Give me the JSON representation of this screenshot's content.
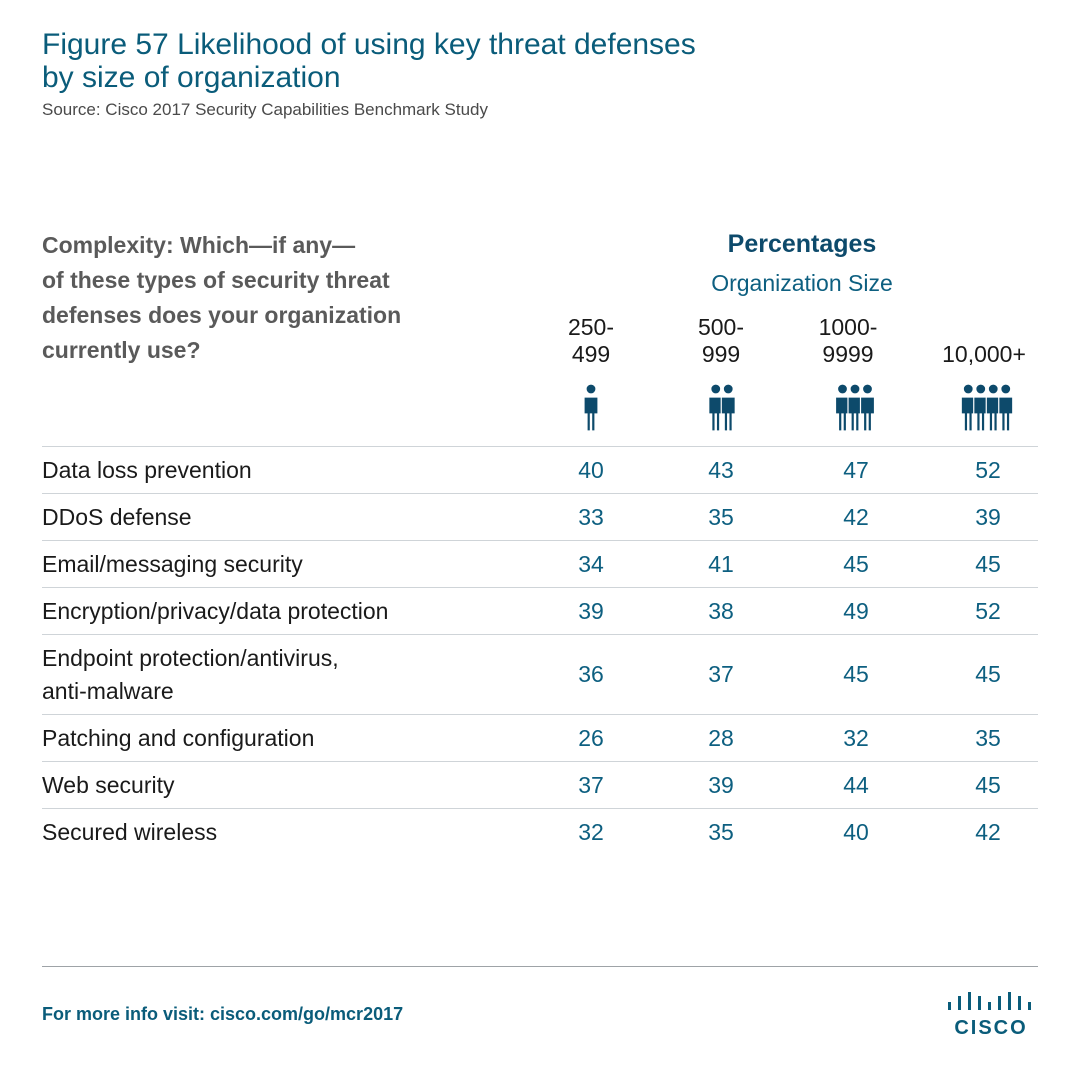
{
  "header": {
    "title_line1": "Figure 57  Likelihood of using key threat defenses",
    "title_line2": "by size of organization",
    "source": "Source: Cisco 2017 Security Capabilities Benchmark Study"
  },
  "question": {
    "line1": "Complexity: Which—if any—",
    "line2": "of these types of security threat",
    "line3": "defenses does your organization",
    "line4": "currently use?"
  },
  "headings": {
    "percentages": "Percentages",
    "organization_size": "Organization Size"
  },
  "columns": [
    {
      "line1": "250-",
      "line2": "499",
      "people_icons": 1
    },
    {
      "line1": "500-",
      "line2": "999",
      "people_icons": 2
    },
    {
      "line1": "1000-",
      "line2": "9999",
      "people_icons": 3
    },
    {
      "line1": "10,000+",
      "line2": "",
      "people_icons": 4
    }
  ],
  "chart_data": {
    "type": "table",
    "title": "Figure 57  Likelihood of using key threat defenses by size of organization",
    "columns": [
      "250-499",
      "500-999",
      "1000-9999",
      "10,000+"
    ],
    "rows": [
      {
        "label": "Data loss prevention",
        "values": [
          40,
          43,
          47,
          52
        ]
      },
      {
        "label": "DDoS defense",
        "values": [
          33,
          35,
          42,
          39
        ]
      },
      {
        "label": "Email/messaging security",
        "values": [
          34,
          41,
          45,
          45
        ]
      },
      {
        "label": "Encryption/privacy/data protection",
        "values": [
          39,
          38,
          49,
          52
        ]
      },
      {
        "label": "Endpoint protection/antivirus, anti-malware",
        "label_line1": "Endpoint protection/antivirus,",
        "label_line2": "anti-malware",
        "values": [
          36,
          37,
          45,
          45
        ]
      },
      {
        "label": "Patching and configuration",
        "values": [
          26,
          28,
          32,
          35
        ]
      },
      {
        "label": "Web security",
        "values": [
          37,
          39,
          44,
          45
        ]
      },
      {
        "label": "Secured wireless",
        "values": [
          32,
          35,
          40,
          42
        ]
      }
    ]
  },
  "footer": {
    "info_text": "For more info visit: cisco.com/go/mcr2017",
    "logo_text": "CISCO"
  },
  "colors": {
    "title": "#0a5c7a",
    "value": "#0d5f80",
    "heading": "#0d4a6b",
    "icon": "#0d4a6b"
  },
  "icons": {
    "person": "person-icon",
    "logo_bars": "cisco-bars-icon"
  }
}
